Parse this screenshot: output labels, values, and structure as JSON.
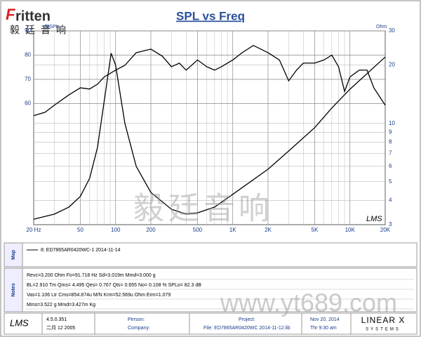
{
  "header": {
    "logo_initial": "F",
    "logo_rest": "ritten",
    "logo_cn": "毅廷音响"
  },
  "chart_data": {
    "type": "line",
    "title": "SPL vs Freq",
    "y_label": "dBSPL",
    "y2_label": "Ohm",
    "brand": "LMS",
    "x_scale": "log",
    "xlim": [
      20,
      20000
    ],
    "xticks": [
      {
        "value": 20,
        "label": "20 Hz"
      },
      50,
      100,
      200,
      500,
      {
        "value": 1000,
        "label": "1K"
      },
      {
        "value": 2000,
        "label": "2K"
      },
      {
        "value": 5000,
        "label": "5K"
      },
      {
        "value": 10000,
        "label": "10K"
      },
      {
        "value": 20000,
        "label": "20K"
      }
    ],
    "xminor": [
      30,
      40,
      60,
      70,
      80,
      90,
      300,
      400,
      600,
      700,
      800,
      900,
      3000,
      4000,
      6000,
      7000,
      8000,
      9000
    ],
    "ylim": [
      10,
      90
    ],
    "yticks": [
      60,
      70,
      80,
      90
    ],
    "y2_scale": "log",
    "y2lim": [
      3,
      30
    ],
    "y2ticks": [
      3,
      4,
      5,
      6,
      7,
      8,
      9,
      10,
      20,
      30
    ],
    "grid": true,
    "series": [
      {
        "color": "#000000",
        "x": [
          20,
          25,
          30,
          40,
          50,
          60,
          70,
          80,
          100,
          120,
          150,
          200,
          250,
          300,
          350,
          400,
          500,
          600,
          700,
          800,
          1000,
          1200,
          1500,
          2000,
          2500,
          3000,
          3500,
          4000,
          5000,
          6000,
          7000,
          8000,
          9000,
          10000,
          12000,
          14000,
          16000,
          20000
        ],
        "values": [
          55,
          56.4,
          59.3,
          63.6,
          66.5,
          66,
          68,
          71,
          73.8,
          75.8,
          81,
          82.5,
          79.6,
          75.2,
          76.7,
          73.8,
          78,
          75.2,
          73.8,
          75.2,
          78,
          81,
          84,
          81,
          78,
          69.4,
          73.8,
          76.7,
          76.7,
          78,
          80,
          75.2,
          65,
          71,
          73.8,
          73.8,
          66.5,
          59.3
        ]
      },
      {
        "color": "#000000",
        "axis": "y2",
        "x": [
          20,
          30,
          40,
          50,
          60,
          70,
          80,
          91.7,
          100,
          120,
          150,
          200,
          300,
          400,
          500,
          700,
          1000,
          2000,
          3000,
          5000,
          7000,
          10000,
          20000
        ],
        "values": [
          3.2,
          3.4,
          3.7,
          4.2,
          5.2,
          7.5,
          13,
          23,
          20,
          10,
          6,
          4.4,
          3.6,
          3.4,
          3.45,
          3.7,
          4.3,
          5.8,
          7.2,
          9.5,
          12,
          15,
          22
        ]
      }
    ]
  },
  "map": {
    "label": "Map",
    "legend": "8: ED7865AR0420WC-1  2014-11-14"
  },
  "notes": {
    "label": "Notes",
    "lines": [
      "Revc=3.200 Ohm  Fo=91.718 Hz  Sd=3.019m  Mmd=3.000 g",
      "BL=2.910 Tm  Qms= 4.495  Qes= 0.767  Qts= 0.655  No= 0.108 %  SPLo= 82.3 dB",
      "Vas=1.106 Ltr  Cms=854.874u M/N  Krm=52.569u Ohm  Erm=1.079",
      "Mms=3.522 g  Mmd=3.427m Kg"
    ]
  },
  "footer": {
    "app": "LMS",
    "version": "4.5.0.351",
    "date": "二月 12 2005",
    "person": "Person:",
    "company": "Company:",
    "project": "Project:",
    "file": "File: ED7865AR0420WC  2014-11-12.lib",
    "print_date": "Nov 20, 2014",
    "print_time": "Thr  9:30 am",
    "vendor": "LINEAR X",
    "vendor_sub": "SYSTEMS"
  },
  "watermark": {
    "cn": "毅廷音响",
    "url": "www.yt689.com"
  }
}
